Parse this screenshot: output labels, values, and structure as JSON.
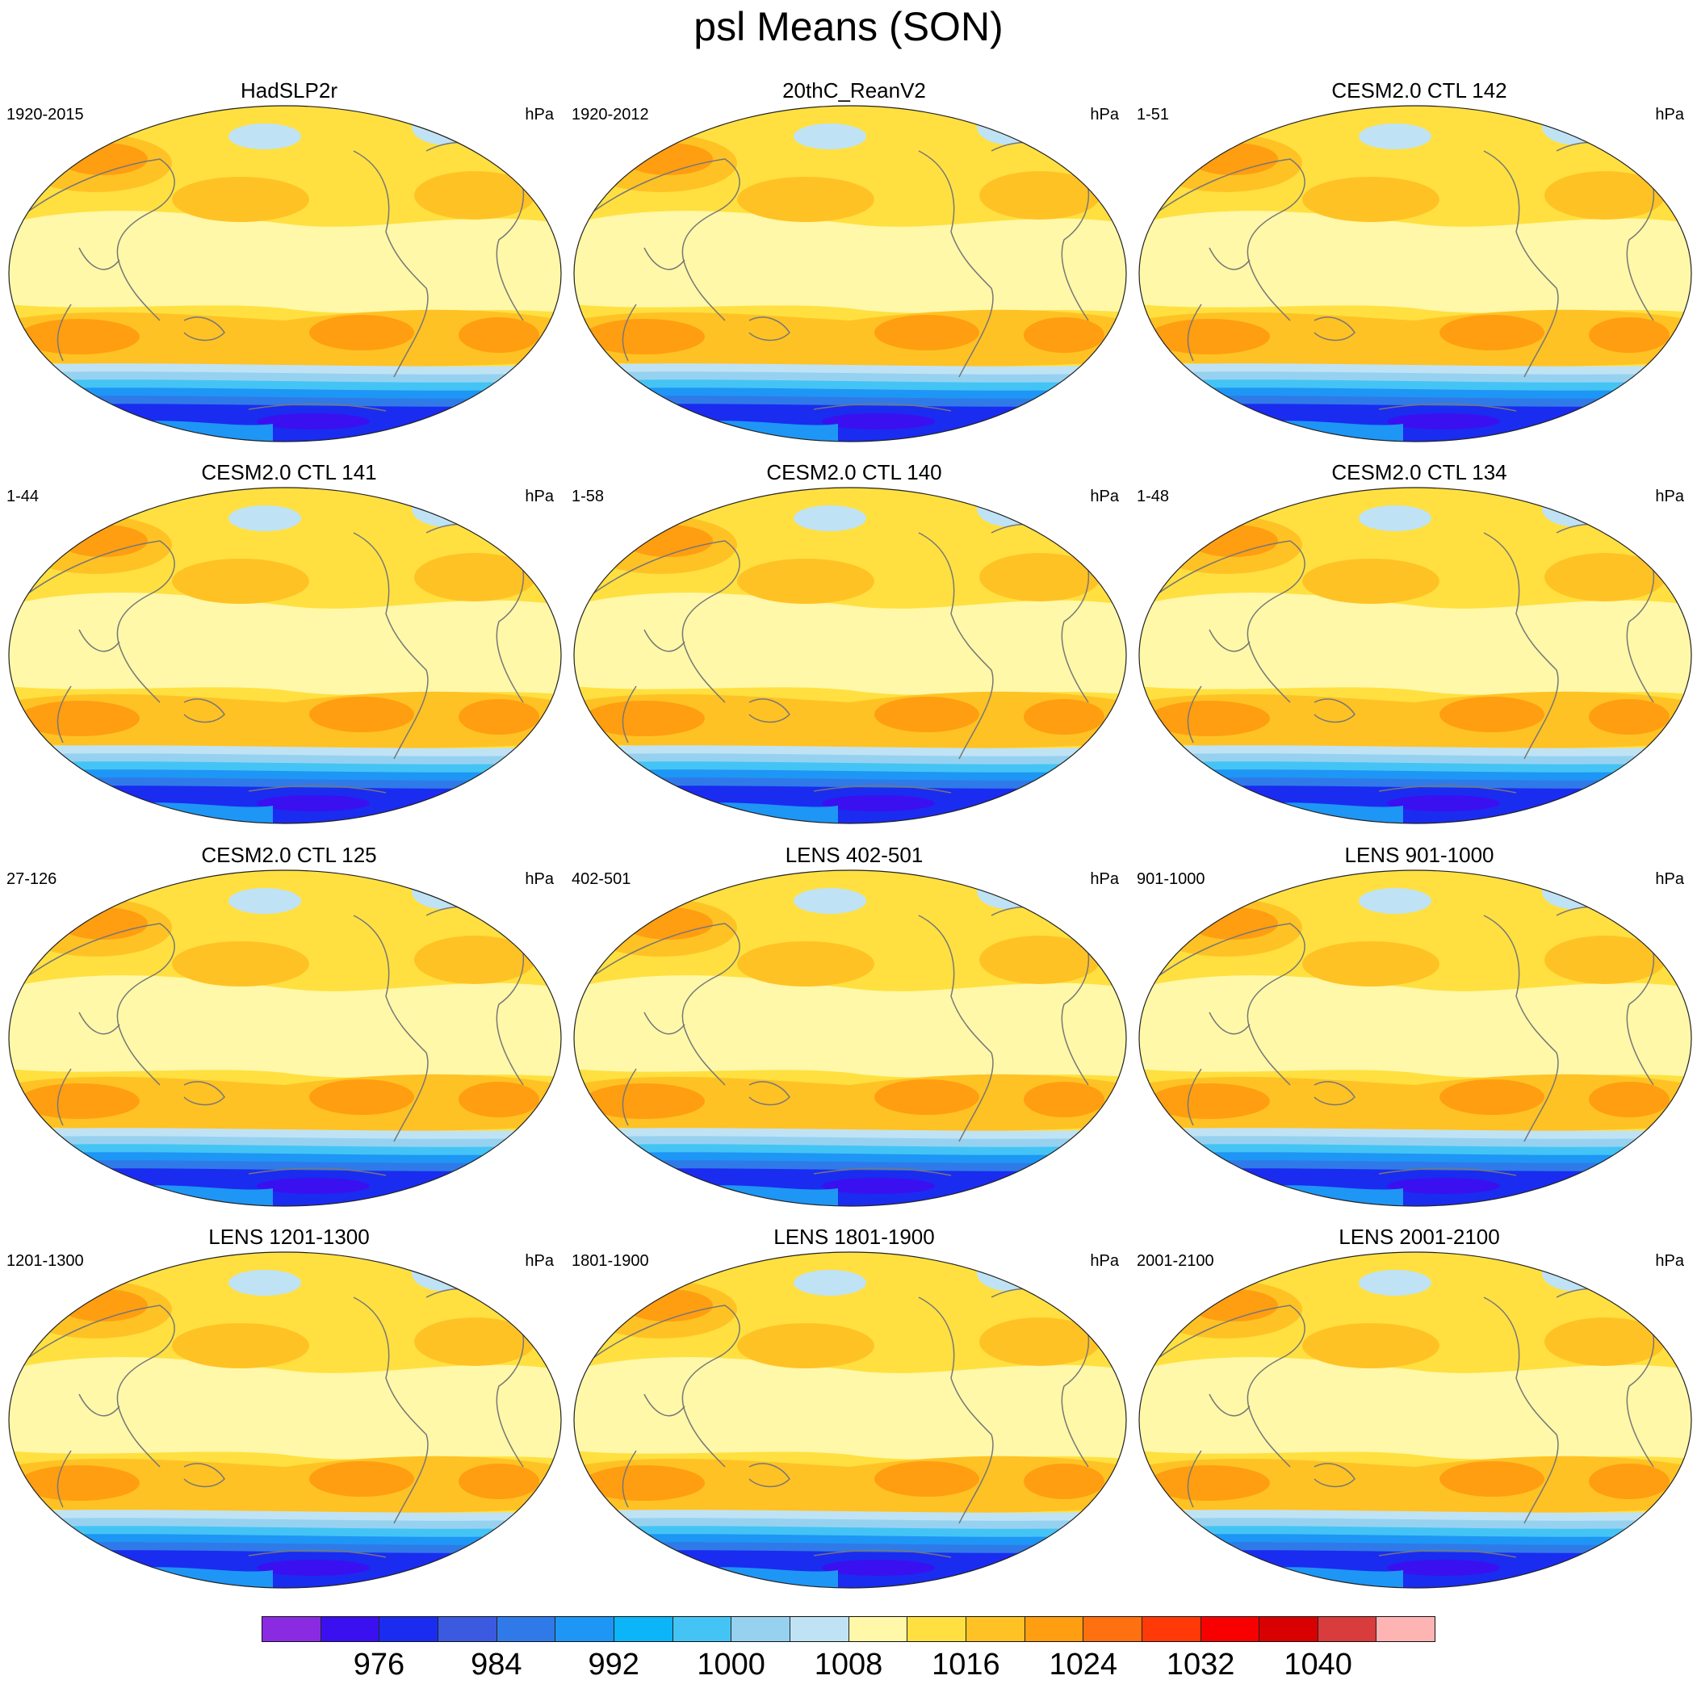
{
  "title": "psl Means (SON)",
  "panels": [
    {
      "title": "HadSLP2r",
      "left_label": "1920-2015",
      "right_label": "hPa"
    },
    {
      "title": "20thC_ReanV2",
      "left_label": "1920-2012",
      "right_label": "hPa"
    },
    {
      "title": "CESM2.0 CTL 142",
      "left_label": "1-51",
      "right_label": "hPa"
    },
    {
      "title": "CESM2.0 CTL 141",
      "left_label": "1-44",
      "right_label": "hPa"
    },
    {
      "title": "CESM2.0 CTL 140",
      "left_label": "1-58",
      "right_label": "hPa"
    },
    {
      "title": "CESM2.0 CTL 134",
      "left_label": "1-48",
      "right_label": "hPa"
    },
    {
      "title": "CESM2.0 CTL 125",
      "left_label": "27-126",
      "right_label": "hPa"
    },
    {
      "title": "LENS 402-501",
      "left_label": "402-501",
      "right_label": "hPa"
    },
    {
      "title": "LENS 901-1000",
      "left_label": "901-1000",
      "right_label": "hPa"
    },
    {
      "title": "LENS 1201-1300",
      "left_label": "1201-1300",
      "right_label": "hPa"
    },
    {
      "title": "LENS 1801-1900",
      "left_label": "1801-1900",
      "right_label": "hPa"
    },
    {
      "title": "LENS 2001-2100",
      "left_label": "2001-2100",
      "right_label": "hPa"
    }
  ],
  "colorbar": {
    "colors": [
      "#8a2be2",
      "#3a10f0",
      "#1a2cf0",
      "#3b5ae0",
      "#2f7ae8",
      "#1e96f5",
      "#0cb4f8",
      "#44c4f5",
      "#96d2f0",
      "#bfe3f5",
      "#fff8a8",
      "#ffe040",
      "#ffc224",
      "#ff9e10",
      "#ff7010",
      "#ff3a08",
      "#f80000",
      "#d80000",
      "#d83c3c",
      "#ffb4b4"
    ],
    "tick_labels": [
      "976",
      "984",
      "992",
      "1000",
      "1008",
      "1016",
      "1024",
      "1032",
      "1040"
    ],
    "unit": "hPa"
  },
  "map_colors": {
    "high": "#ff9e10",
    "mid_high": "#ffc224",
    "mid": "#ffe040",
    "low_high": "#fff8a8",
    "low": "#bfe3f5",
    "deep1": "#96d2f0",
    "deep2": "#44c4f5",
    "deep3": "#1e96f5",
    "deep4": "#2f7ae8",
    "deep5": "#1a2cf0",
    "deep6": "#3a10f0",
    "coast": "#777777"
  }
}
